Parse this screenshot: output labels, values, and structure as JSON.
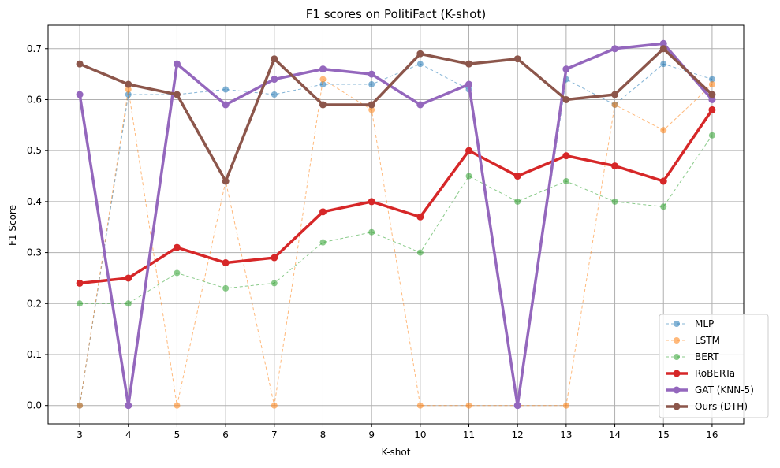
{
  "chart_data": {
    "type": "line",
    "title": "F1 scores on PolitiFact (K-shot)",
    "xlabel": "K-shot",
    "ylabel": "F1 Score",
    "x": [
      3,
      4,
      5,
      6,
      7,
      8,
      9,
      10,
      11,
      12,
      13,
      14,
      15,
      16
    ],
    "xticks": [
      "3",
      "4",
      "5",
      "6",
      "7",
      "8",
      "9",
      "10",
      "11",
      "12",
      "13",
      "14",
      "15",
      "16"
    ],
    "xlim": [
      2.35,
      16.65
    ],
    "yticks": [
      "0.0",
      "0.1",
      "0.2",
      "0.3",
      "0.4",
      "0.5",
      "0.6",
      "0.7"
    ],
    "ylim": [
      -0.036,
      0.746
    ],
    "grid": true,
    "legend_position": "bottom-right",
    "series": [
      {
        "name": "MLP",
        "color": "#1f77b4",
        "style": "dashed",
        "weight": "thin",
        "values": [
          0.0,
          0.61,
          0.61,
          0.62,
          0.61,
          0.63,
          0.63,
          0.67,
          0.62,
          0.0,
          0.64,
          0.59,
          0.67,
          0.64
        ]
      },
      {
        "name": "LSTM",
        "color": "#ff7f0e",
        "style": "dashed",
        "weight": "thin",
        "values": [
          0.0,
          0.62,
          0.0,
          0.44,
          0.0,
          0.64,
          0.58,
          0.0,
          0.0,
          0.0,
          0.0,
          0.59,
          0.54,
          0.63
        ]
      },
      {
        "name": "BERT",
        "color": "#2ca02c",
        "style": "dashed",
        "weight": "thin",
        "values": [
          0.2,
          0.2,
          0.26,
          0.23,
          0.24,
          0.32,
          0.34,
          0.3,
          0.45,
          0.4,
          0.44,
          0.4,
          0.39,
          0.53
        ]
      },
      {
        "name": "RoBERTa",
        "color": "#d62728",
        "style": "solid",
        "weight": "bold",
        "values": [
          0.24,
          0.25,
          0.31,
          0.28,
          0.29,
          0.38,
          0.4,
          0.37,
          0.5,
          0.45,
          0.49,
          0.47,
          0.44,
          0.58
        ]
      },
      {
        "name": "GAT (KNN-5)",
        "color": "#9467bd",
        "style": "solid",
        "weight": "bold",
        "values": [
          0.61,
          0.0,
          0.67,
          0.59,
          0.64,
          0.66,
          0.65,
          0.59,
          0.63,
          0.0,
          0.66,
          0.7,
          0.71,
          0.6
        ]
      },
      {
        "name": "Ours (DTH)",
        "color": "#8c564b",
        "style": "solid",
        "weight": "bold",
        "values": [
          0.67,
          0.63,
          0.61,
          0.44,
          0.68,
          0.59,
          0.59,
          0.69,
          0.67,
          0.68,
          0.6,
          0.61,
          0.7,
          0.61
        ]
      }
    ]
  }
}
